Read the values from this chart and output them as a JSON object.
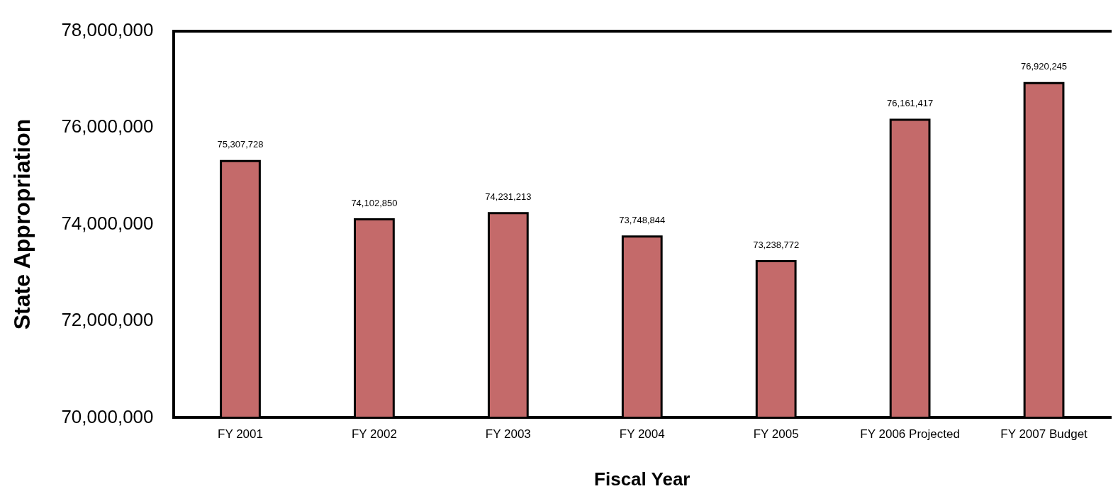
{
  "chart_data": {
    "type": "bar",
    "xlabel": "Fiscal Year",
    "ylabel": "State Appropriation",
    "categories": [
      "FY 2001",
      "FY 2002",
      "FY 2003",
      "FY 2004",
      "FY 2005",
      "FY 2006 Projected",
      "FY 2007 Budget"
    ],
    "values": [
      75307728,
      74102850,
      74231213,
      73748844,
      73238772,
      76161417,
      76920245
    ],
    "value_labels": [
      "75,307,728",
      "74,102,850",
      "74,231,213",
      "73,748,844",
      "73,238,772",
      "76,161,417",
      "76,920,245"
    ],
    "color": "#c46a6a",
    "ylim": [
      70000000,
      78000000
    ],
    "yticks": [
      {
        "value": 70000000,
        "label": "70,000,000"
      },
      {
        "value": 72000000,
        "label": "72,000,000"
      },
      {
        "value": 74000000,
        "label": "74,000,000"
      },
      {
        "value": 76000000,
        "label": "76,000,000"
      },
      {
        "value": 78000000,
        "label": "78,000,000"
      }
    ],
    "grid": false,
    "legend": false
  }
}
